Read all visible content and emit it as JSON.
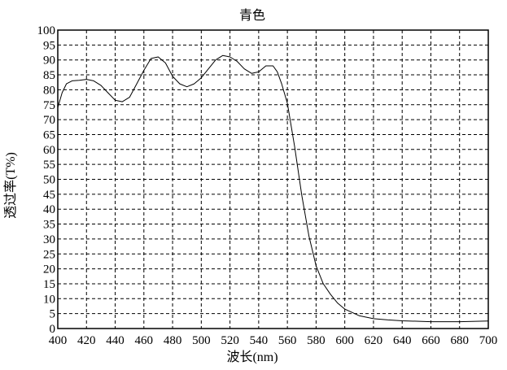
{
  "chart_data": {
    "type": "line",
    "title": "青色",
    "xlabel": "波长(nm)",
    "ylabel": "透过率(T%)",
    "xlim": [
      400,
      700
    ],
    "ylim": [
      0,
      100
    ],
    "xticks": [
      400,
      420,
      440,
      460,
      480,
      500,
      520,
      540,
      560,
      580,
      600,
      620,
      640,
      660,
      680,
      700
    ],
    "yticks": [
      0,
      5,
      10,
      15,
      20,
      25,
      30,
      35,
      40,
      45,
      50,
      55,
      60,
      65,
      70,
      75,
      80,
      85,
      90,
      95,
      100
    ],
    "grid": true,
    "grid_style": "dashed",
    "line_color": "#000000",
    "series": [
      {
        "x": [
          400,
          403,
          406,
          410,
          415,
          420,
          425,
          430,
          435,
          440,
          445,
          450,
          455,
          460,
          465,
          470,
          475,
          480,
          485,
          490,
          495,
          500,
          505,
          510,
          515,
          520,
          525,
          530,
          535,
          540,
          545,
          550,
          553,
          556,
          560,
          565,
          570,
          575,
          580,
          585,
          590,
          595,
          600,
          610,
          620,
          630,
          640,
          660,
          680,
          700
        ],
        "values": [
          74,
          79,
          82,
          83,
          83.2,
          83.5,
          83,
          81.5,
          79,
          76.5,
          76,
          77.5,
          82,
          86.5,
          90.5,
          91,
          89,
          84.5,
          82,
          81,
          82,
          84,
          87,
          90,
          91.5,
          91,
          89.5,
          87,
          85.5,
          86,
          88,
          88,
          86,
          82,
          75.5,
          61,
          44.7,
          31,
          21,
          15,
          11.5,
          8.5,
          6.5,
          4.3,
          3.3,
          2.9,
          2.6,
          2.3,
          2.3,
          2.5
        ]
      }
    ]
  }
}
